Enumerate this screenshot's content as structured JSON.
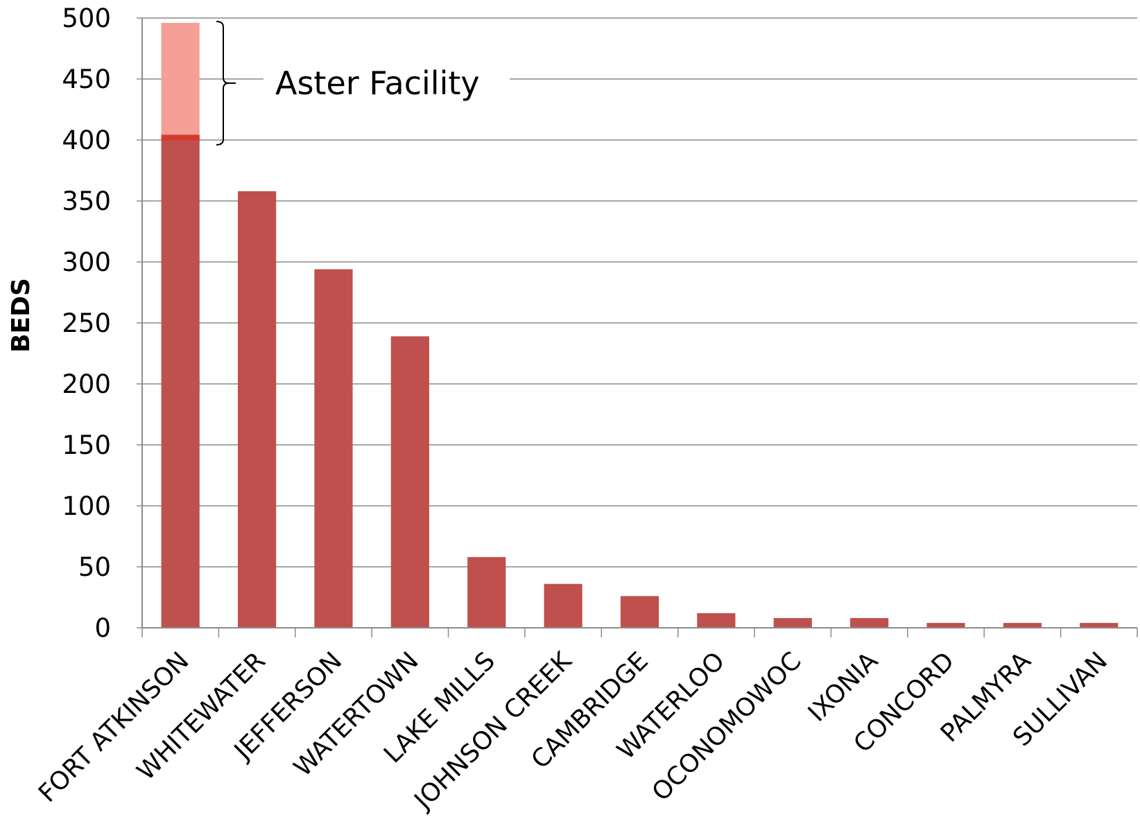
{
  "chart_data": {
    "type": "bar",
    "title": "",
    "xlabel": "",
    "ylabel": "BEDS",
    "ylim": [
      0,
      500
    ],
    "ytick_step": 50,
    "grid": true,
    "categories": [
      "FORT ATKINSON",
      "WHITEWATER",
      "JEFFERSON",
      "WATERTOWN",
      "LAKE MILLS",
      "JOHNSON CREEK",
      "CAMBRIDGE",
      "WATERLOO",
      "OCONOMOWOC",
      "IXONIA",
      "CONCORD",
      "PALMYRA",
      "SULLIVAN"
    ],
    "series": [
      {
        "values": [
          402,
          358,
          294,
          239,
          58,
          36,
          26,
          12,
          8,
          8,
          4,
          4,
          4
        ],
        "color": "#c0504d"
      },
      {
        "values": [
          94,
          0,
          0,
          0,
          0,
          0,
          0,
          0,
          0,
          0,
          0,
          0,
          0
        ],
        "color": "#f4a097"
      }
    ],
    "annotation": {
      "text": "Aster Facility",
      "from": 400,
      "to": 496,
      "category": "FORT ATKINSON"
    }
  }
}
